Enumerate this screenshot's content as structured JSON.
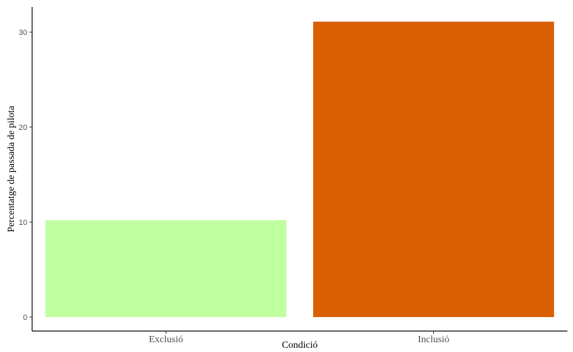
{
  "chart_data": {
    "type": "bar",
    "categories": [
      "Exclusió",
      "Inclusió"
    ],
    "values": [
      10.2,
      31.1
    ],
    "colors": [
      "#c0ffa0",
      "#d95f02"
    ],
    "title": "",
    "xlabel": "Condició",
    "ylabel": "Percentatge de passada de pilota",
    "ylim": [
      0,
      32.3
    ],
    "yticks": [
      0,
      10,
      20,
      30
    ],
    "grid": false,
    "legend": "none"
  }
}
